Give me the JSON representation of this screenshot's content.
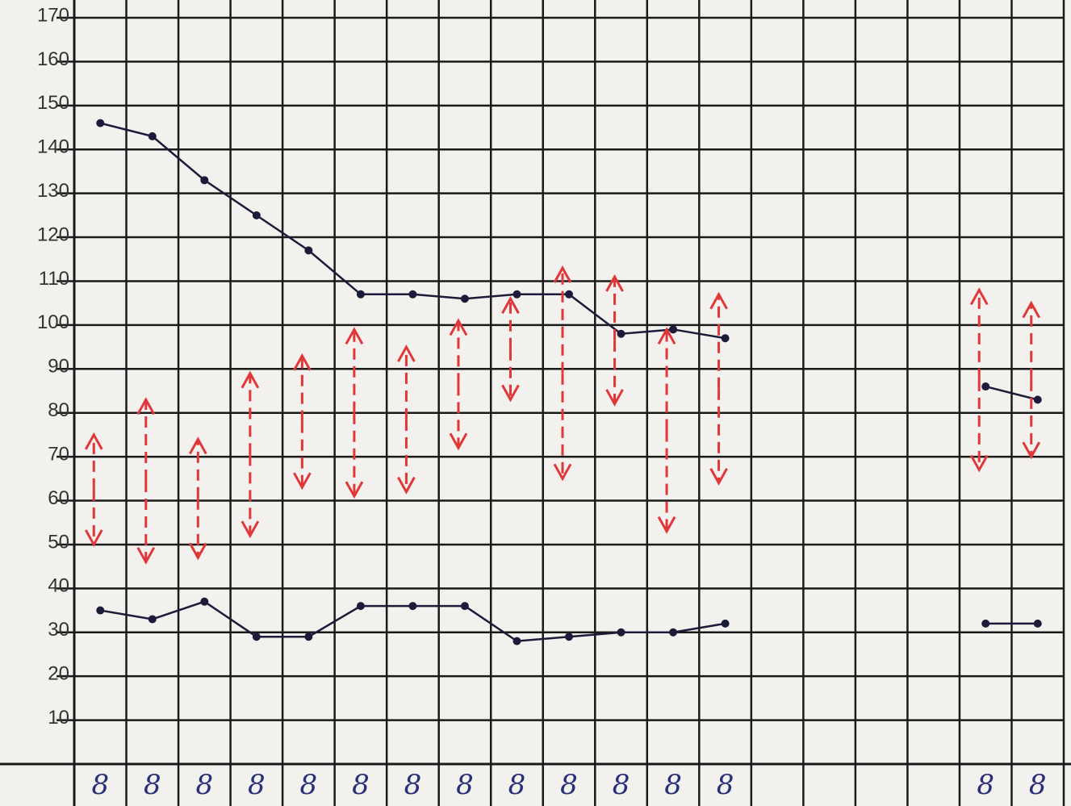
{
  "chart_data": {
    "type": "line",
    "categories": [
      "8",
      "8",
      "8",
      "8",
      "8",
      "8",
      "8",
      "8",
      "8",
      "8",
      "8",
      "8",
      "8",
      null,
      null,
      null,
      null,
      "8",
      "8"
    ],
    "ylim": [
      0,
      170
    ],
    "yticks": [
      10,
      20,
      30,
      40,
      50,
      60,
      70,
      80,
      90,
      100,
      110,
      120,
      130,
      140,
      150,
      160,
      170
    ],
    "grid": true,
    "series": [
      {
        "color": "#1c1c3a",
        "marker": "dot",
        "values": [
          146,
          143,
          133,
          125,
          117,
          107,
          107,
          106,
          107,
          107,
          98,
          99,
          97,
          null,
          null,
          null,
          null,
          86,
          83
        ]
      },
      {
        "color": "#1c1c3a",
        "marker": "dot",
        "values": [
          35,
          33,
          37,
          29,
          29,
          36,
          36,
          36,
          28,
          29,
          30,
          30,
          32,
          null,
          null,
          null,
          null,
          32,
          32
        ]
      },
      {
        "color": "#e0383a",
        "marker": "arrow-up",
        "values": [
          75,
          83,
          74,
          89,
          93,
          99,
          95,
          101,
          106,
          113,
          111,
          99,
          107,
          null,
          null,
          null,
          null,
          108,
          105
        ]
      },
      {
        "color": "#e0383a",
        "marker": "arrow-down",
        "values": [
          50,
          46,
          47,
          52,
          63,
          61,
          62,
          72,
          83,
          65,
          82,
          53,
          64,
          null,
          null,
          null,
          null,
          67,
          70
        ]
      }
    ]
  }
}
